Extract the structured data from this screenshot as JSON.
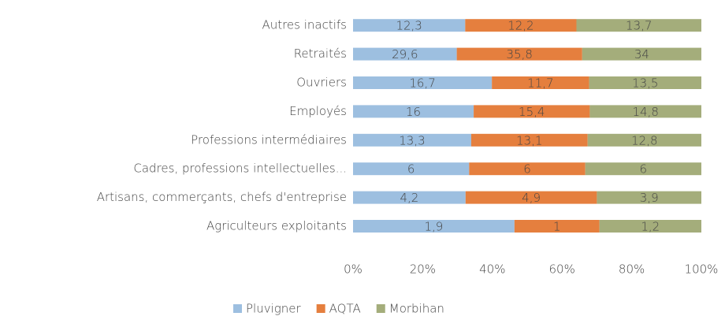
{
  "chart_data": {
    "type": "percent-stacked-bar",
    "categories": [
      "Autres inactifs",
      "Retraités",
      "Ouvriers",
      "Employés",
      "Professions intermédiaires",
      "Cadres, professions intellectuelles...",
      "Artisans, commerçants, chefs d'entreprise",
      "Agriculteurs exploitants"
    ],
    "series": [
      {
        "name": "Pluvigner",
        "color": "#9dbfe0",
        "values": [
          12.3,
          29.6,
          16.7,
          16,
          13.3,
          6,
          4.2,
          1.9
        ],
        "value_labels": [
          "12,3",
          "29,6",
          "16,7",
          "16",
          "13,3",
          "6",
          "4,2",
          "1,9"
        ]
      },
      {
        "name": "AQTA",
        "color": "#e57f3e",
        "values": [
          12.2,
          35.8,
          11.7,
          15.4,
          13.1,
          6,
          4.9,
          1
        ],
        "value_labels": [
          "12,2",
          "35,8",
          "11,7",
          "15,4",
          "13,1",
          "6",
          "4,9",
          "1"
        ]
      },
      {
        "name": "Morbihan",
        "color": "#a4ad7b",
        "values": [
          13.7,
          34,
          13.5,
          14.8,
          12.8,
          6,
          3.9,
          1.2
        ],
        "value_labels": [
          "13,7",
          "34",
          "13,5",
          "14,8",
          "12,8",
          "6",
          "3,9",
          "1,2"
        ]
      }
    ],
    "xlim": [
      0,
      100
    ],
    "xticks": [
      {
        "value": 0,
        "label": "0%"
      },
      {
        "value": 20,
        "label": "20%"
      },
      {
        "value": 40,
        "label": "40%"
      },
      {
        "value": 60,
        "label": "60%"
      },
      {
        "value": 80,
        "label": "80%"
      },
      {
        "value": 100,
        "label": "100%"
      }
    ],
    "legend": "bottom"
  }
}
